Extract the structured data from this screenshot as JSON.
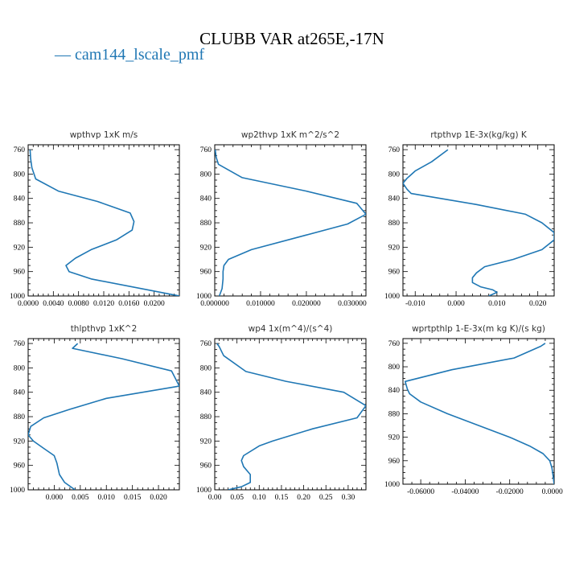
{
  "figure": {
    "title": "CLUBB VAR at265E,-17N",
    "legend_label": "— cam144_lscale_pmf",
    "series_color": "#1f77b4"
  },
  "chart_data": [
    {
      "type": "line",
      "title": "wpthvp  1xK m/s",
      "xlim": [
        0.0,
        0.024
      ],
      "ylim": [
        1000,
        752
      ],
      "x_ticks": [
        "0.0000",
        "0.0040",
        "0.0080",
        "0.0120",
        "0.0160",
        "0.0200"
      ],
      "x_tick_values": [
        0.0,
        0.004,
        0.008,
        0.012,
        0.016,
        0.02
      ],
      "y_ticks": [
        "760",
        "800",
        "840",
        "880",
        "920",
        "960",
        "1000"
      ],
      "y_tick_values": [
        760,
        800,
        840,
        880,
        920,
        960,
        1000
      ],
      "series": [
        {
          "x": [
            0.0003,
            0.0004,
            0.0006,
            0.0012,
            0.0048,
            0.011,
            0.0162,
            0.0168,
            0.0165,
            0.014,
            0.01,
            0.0075,
            0.006,
            0.0065,
            0.01,
            0.024
          ],
          "y": [
            760,
            775,
            790,
            808,
            828,
            845,
            864,
            878,
            892,
            908,
            924,
            938,
            950,
            960,
            972,
            1000
          ]
        }
      ]
    },
    {
      "type": "line",
      "title": "wp2thvp  1xK m^2/s^2",
      "xlim": [
        0.0,
        0.033
      ],
      "ylim": [
        1000,
        752
      ],
      "x_ticks": [
        "0.000000",
        "0.010000",
        "0.020000",
        "0.030000"
      ],
      "x_tick_values": [
        0.0,
        0.01,
        0.02,
        0.03
      ],
      "y_ticks": [
        "760",
        "800",
        "840",
        "880",
        "920",
        "960",
        "1000"
      ],
      "y_tick_values": [
        760,
        800,
        840,
        880,
        920,
        960,
        1000
      ],
      "series": [
        {
          "x": [
            0.0001,
            0.0003,
            0.0008,
            0.006,
            0.02,
            0.031,
            0.033,
            0.029,
            0.02,
            0.008,
            0.003,
            0.002,
            0.0018,
            0.0018,
            0.0016,
            0.001
          ],
          "y": [
            760,
            772,
            784,
            806,
            828,
            848,
            866,
            882,
            900,
            924,
            940,
            950,
            960,
            972,
            988,
            1000
          ]
        }
      ]
    },
    {
      "type": "line",
      "title": "rtpthvp  1E-3x(kg/kg) K",
      "xlim": [
        -0.013,
        0.024
      ],
      "ylim": [
        1000,
        752
      ],
      "x_ticks": [
        "-0.010",
        "0.000",
        "0.010",
        "0.020"
      ],
      "x_tick_values": [
        -0.01,
        0.0,
        0.01,
        0.02
      ],
      "y_ticks": [
        "760",
        "800",
        "840",
        "880",
        "920",
        "960",
        "1000"
      ],
      "y_tick_values": [
        760,
        800,
        840,
        880,
        920,
        960,
        1000
      ],
      "series": [
        {
          "x": [
            -0.002,
            -0.006,
            -0.01,
            -0.012,
            -0.013,
            -0.012,
            -0.011,
            0.005,
            0.017,
            0.021,
            0.024,
            0.024,
            0.021,
            0.014,
            0.007,
            0.005,
            0.004,
            0.004,
            0.006,
            0.009,
            0.01,
            0.008
          ],
          "y": [
            760,
            780,
            795,
            807,
            815,
            825,
            832,
            850,
            866,
            880,
            896,
            908,
            924,
            940,
            952,
            962,
            970,
            978,
            985,
            990,
            994,
            1000
          ]
        }
      ]
    },
    {
      "type": "line",
      "title": "thlpthvp  1xK^2",
      "xlim": [
        -0.005,
        0.024
      ],
      "ylim": [
        1000,
        752
      ],
      "x_ticks": [
        "0.000",
        "0.005",
        "0.010",
        "0.015",
        "0.020"
      ],
      "x_tick_values": [
        0.0,
        0.005,
        0.01,
        0.015,
        0.02
      ],
      "y_ticks": [
        "760",
        "800",
        "840",
        "880",
        "920",
        "960",
        "1000"
      ],
      "y_tick_values": [
        760,
        800,
        840,
        880,
        920,
        960,
        1000
      ],
      "series": [
        {
          "x": [
            0.0045,
            0.0035,
            0.013,
            0.0225,
            0.024,
            0.01,
            0.003,
            -0.002,
            -0.0045,
            -0.005,
            -0.004,
            -0.002,
            0.0,
            0.0005,
            0.001,
            0.002,
            0.004
          ],
          "y": [
            760,
            768,
            785,
            805,
            830,
            850,
            868,
            882,
            896,
            910,
            920,
            932,
            944,
            956,
            975,
            988,
            1000
          ]
        }
      ]
    },
    {
      "type": "line",
      "title": "wp4   1x(m^4)/(s^4)",
      "xlim": [
        0.0,
        0.34
      ],
      "ylim": [
        1000,
        752
      ],
      "x_ticks": [
        "0.00",
        "0.05",
        "0.10",
        "0.15",
        "0.20",
        "0.25",
        "0.30"
      ],
      "x_tick_values": [
        0.0,
        0.05,
        0.1,
        0.15,
        0.2,
        0.25,
        0.3
      ],
      "y_ticks": [
        "760",
        "800",
        "840",
        "880",
        "920",
        "960",
        "1000"
      ],
      "y_tick_values": [
        760,
        800,
        840,
        880,
        920,
        960,
        1000
      ],
      "series": [
        {
          "x": [
            0.005,
            0.01,
            0.02,
            0.07,
            0.16,
            0.29,
            0.34,
            0.32,
            0.22,
            0.13,
            0.1,
            0.065,
            0.06,
            0.065,
            0.08,
            0.08,
            0.06,
            0.03
          ],
          "y": [
            760,
            765,
            780,
            806,
            822,
            840,
            862,
            882,
            900,
            920,
            928,
            944,
            952,
            962,
            975,
            988,
            995,
            1000
          ]
        }
      ]
    },
    {
      "type": "line",
      "title": "wprtpthlp  1-E-3x(m kg K)/(s kg)",
      "xlim": [
        -0.068,
        0.0
      ],
      "ylim": [
        1000,
        752
      ],
      "x_ticks": [
        "-0.06000",
        "-0.04000",
        "-0.02000",
        "0.00000"
      ],
      "x_tick_values": [
        -0.06,
        -0.04,
        -0.02,
        0.0
      ],
      "y_ticks": [
        "760",
        "800",
        "840",
        "880",
        "920",
        "960",
        "1000"
      ],
      "y_tick_values": [
        760,
        800,
        840,
        880,
        920,
        960,
        1000
      ],
      "series": [
        {
          "x": [
            -0.004,
            -0.006,
            -0.018,
            -0.046,
            -0.067,
            -0.066,
            -0.065,
            -0.06,
            -0.048,
            -0.034,
            -0.02,
            -0.011,
            -0.005,
            -0.002,
            -0.001,
            -0.0005,
            0.0
          ],
          "y": [
            760,
            765,
            785,
            805,
            825,
            838,
            846,
            860,
            880,
            900,
            920,
            935,
            948,
            960,
            972,
            985,
            1000
          ]
        }
      ]
    }
  ]
}
